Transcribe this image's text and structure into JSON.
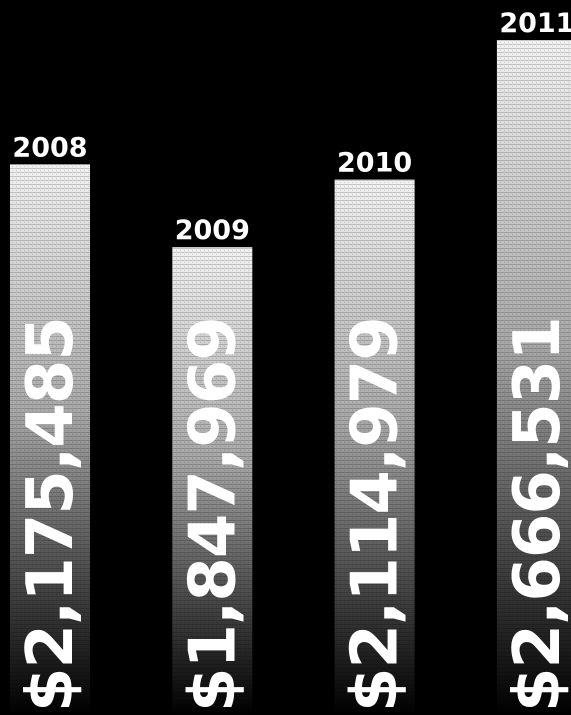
{
  "chart_data": {
    "type": "bar",
    "categories": [
      "2008",
      "2009",
      "2010",
      "2011"
    ],
    "values": [
      2175485,
      1847969,
      2114979,
      2666531
    ],
    "value_labels": [
      "$2,175,485",
      "$1,847,969",
      "$2,114,979",
      "$2,666,531"
    ],
    "title": "",
    "xlabel": "",
    "ylabel": "",
    "legend": "none",
    "grid": false,
    "colors": {
      "background": "#000000",
      "bar_top": "#f2f2f2",
      "bar_bottom": "#000000",
      "text": "#ffffff"
    }
  }
}
